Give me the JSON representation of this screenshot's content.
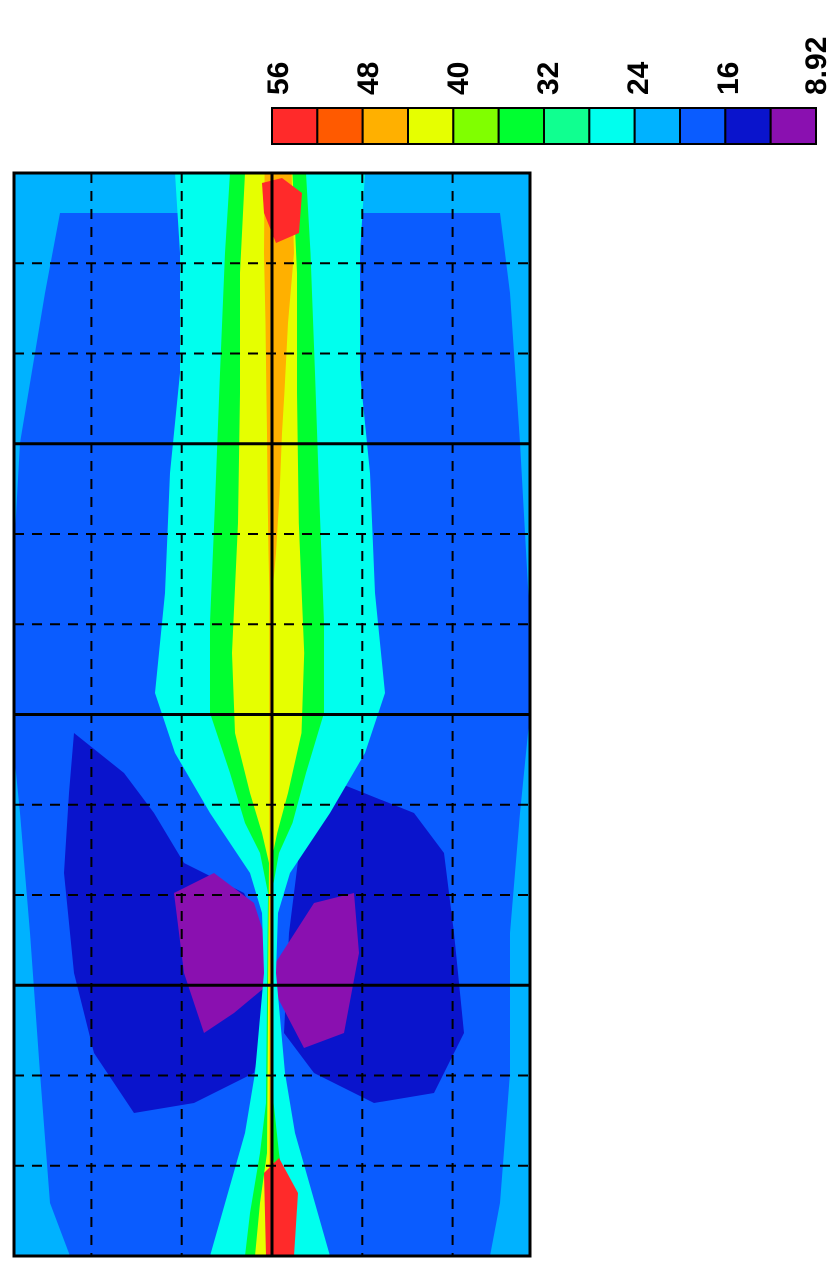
{
  "chart_data": {
    "type": "heatmap",
    "title": "",
    "xlabel": "",
    "ylabel": "",
    "colorbar": {
      "tick_labels": [
        "56",
        "48",
        "40",
        "32",
        "24",
        "16",
        "8.92"
      ],
      "min": 8.92,
      "max": 56,
      "orientation": "rotated-90",
      "colors": [
        "#ff2a2a",
        "#ff5a00",
        "#ffb000",
        "#e6ff00",
        "#80ff00",
        "#00ff30",
        "#10ff90",
        "#00ffee",
        "#00b2ff",
        "#0a5cff",
        "#0a14cc",
        "#8a10b0"
      ]
    },
    "grid": {
      "solid_rows": 3,
      "solid_cols": 1,
      "dashed_divisions_per_block": 3,
      "dashed_lines_across": 4
    },
    "field_description_values": {
      "center_line_peak_top": 56,
      "center_line_peak_bottom": 56,
      "wake_deficit_min": 8.92,
      "ambient_edge": 20
    }
  }
}
